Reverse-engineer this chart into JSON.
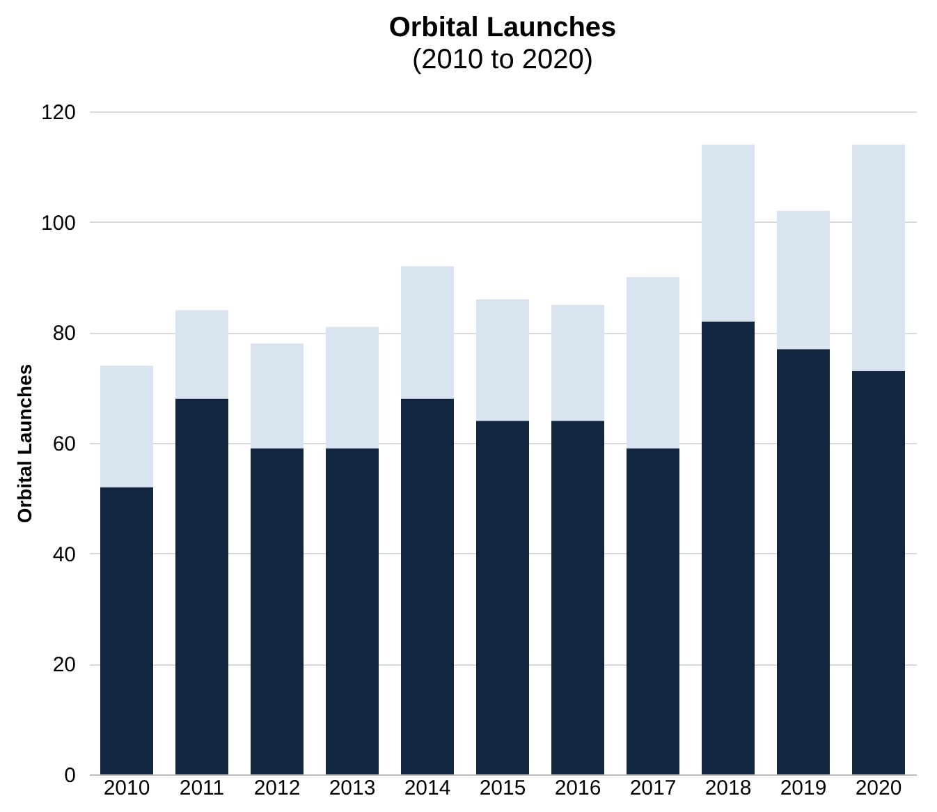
{
  "chart_data": {
    "type": "bar",
    "title": "Orbital Launches",
    "subtitle": "(2010 to 2020)",
    "ylabel": "Orbital Launches",
    "categories": [
      "2010",
      "2011",
      "2012",
      "2013",
      "2014",
      "2015",
      "2016",
      "2017",
      "2018",
      "2019",
      "2020"
    ],
    "series": [
      {
        "color": "#12263f",
        "values": [
          52,
          68,
          59,
          59,
          68,
          64,
          64,
          59,
          82,
          77,
          73
        ]
      },
      {
        "color": "#dae3f0",
        "values": [
          22,
          16,
          19,
          22,
          24,
          22,
          21,
          31,
          32,
          25,
          41
        ]
      }
    ],
    "stacked": true,
    "ylim": [
      0,
      120
    ],
    "yticks": [
      0,
      20,
      40,
      60,
      80,
      100,
      120
    ],
    "grid": "y"
  }
}
